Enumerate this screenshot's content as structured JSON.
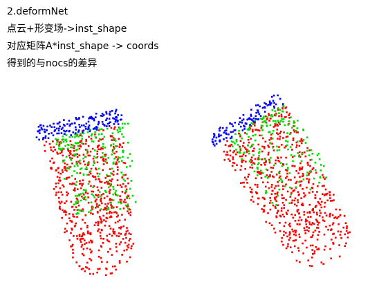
{
  "notes": {
    "line1": "2.deformNet",
    "line2": "点云+形变场->inst_shape",
    "line3": "对应矩阵A*inst_shape -> coords",
    "line4": "得到的与nocs的差异"
  },
  "colors": {
    "background": "#ffffff",
    "red": "#ff0000",
    "green": "#00e000",
    "blue": "#0000ff"
  }
}
